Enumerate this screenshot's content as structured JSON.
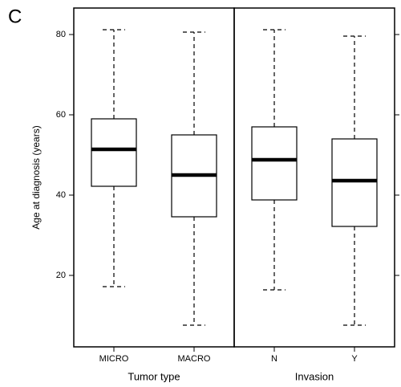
{
  "chart_data": {
    "type": "box",
    "panel_label": "C",
    "ylabel": "Age at diagnosis (years)",
    "ylim": [
      2.2,
      86.6
    ],
    "yticks": [
      20,
      40,
      60,
      80
    ],
    "panels": [
      {
        "xlabel": "Tumor type",
        "categories": [
          "MICRO",
          "MACRO"
        ],
        "boxes": [
          {
            "min": 17.2,
            "q1": 42.2,
            "median": 51.4,
            "q3": 59,
            "max": 81.2
          },
          {
            "min": 7.6,
            "q1": 34.6,
            "median": 45,
            "q3": 55,
            "max": 80.6
          }
        ]
      },
      {
        "xlabel": "Invasion",
        "categories": [
          "N",
          "Y"
        ],
        "boxes": [
          {
            "min": 16.4,
            "q1": 38.8,
            "median": 48.8,
            "q3": 57,
            "max": 81.2
          },
          {
            "min": 7.6,
            "q1": 32.2,
            "median": 43.6,
            "q3": 54,
            "max": 79.6
          }
        ]
      }
    ]
  }
}
